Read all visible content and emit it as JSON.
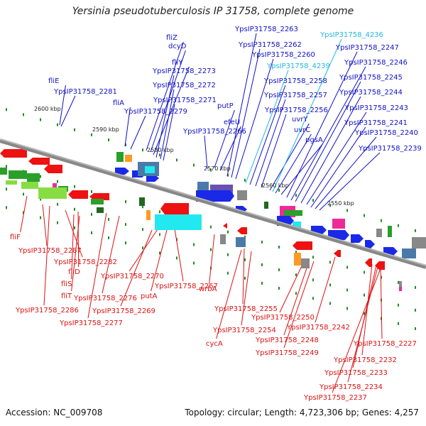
{
  "title": "Yersinia pseudotuberculosis IP 31758, complete genome",
  "footer": {
    "accession": "Accession: NC_009708",
    "summary": "Topology: circular; Length: 4,723,306 bp; Genes: 4,257"
  },
  "colors": {
    "forward_label": "#1010c8",
    "highlight_label": "#22b8e0",
    "reverse_label": "#dd1111",
    "backbone": "#888888",
    "tick_marker": "#228b22"
  },
  "axis": {
    "unit": "kbp",
    "ticks": [
      "2600 kbp",
      "2590 kbp",
      "2580 kbp",
      "2570 kbp",
      "2560 kbp",
      "2550 kbp"
    ]
  },
  "top_labels": [
    {
      "text": "fliZ"
    },
    {
      "text": "dcyD"
    },
    {
      "text": "fliY"
    },
    {
      "text": "YpsIP31758_2273"
    },
    {
      "text": "YpsIP31758_2272"
    },
    {
      "text": "YpsIP31758_2271"
    },
    {
      "text": "fliE"
    },
    {
      "text": "YpsIP31758_2281"
    },
    {
      "text": "fliA"
    },
    {
      "text": "YpsIP31758_2279"
    },
    {
      "text": "putP"
    },
    {
      "text": "efeU"
    },
    {
      "text": "YpsIP31758_2266"
    },
    {
      "text": "YpsIP31758_2263"
    },
    {
      "text": "YpsIP31758_2262"
    },
    {
      "text": "YpsIP31758_2260"
    },
    {
      "text": "YpsIP31758_4239"
    },
    {
      "text": "YpsIP31758_2258"
    },
    {
      "text": "YpsIP31758_2257"
    },
    {
      "text": "YpsIP31758_2256"
    },
    {
      "text": "uvrY"
    },
    {
      "text": "uvrC"
    },
    {
      "text": "pgsA"
    },
    {
      "text": "YpsIP31758_4236"
    },
    {
      "text": "YpsIP31758_2247"
    },
    {
      "text": "YpsIP31758_2246"
    },
    {
      "text": "YpsIP31758_2245"
    },
    {
      "text": "YpsIP31758_2244"
    },
    {
      "text": "YpsIP31758_2243"
    },
    {
      "text": "YpsIP31758_2241"
    },
    {
      "text": "YpsIP31758_2240"
    },
    {
      "text": "YpsIP31758_2239"
    }
  ],
  "bottom_labels": [
    {
      "text": "fliF"
    },
    {
      "text": "YpsIP31758_2287"
    },
    {
      "text": "YpsIP31758_2282"
    },
    {
      "text": "fliD"
    },
    {
      "text": "fliS"
    },
    {
      "text": "fliT"
    },
    {
      "text": "YpsIP31758_2286"
    },
    {
      "text": "YpsIP31758_2277"
    },
    {
      "text": "YpsIP31758_2276"
    },
    {
      "text": "YpsIP31758_2270"
    },
    {
      "text": "putA"
    },
    {
      "text": "YpsIP31758_2267"
    },
    {
      "text": "YpsIP31758_2269"
    },
    {
      "text": "wrbA"
    },
    {
      "text": "YpsIP31758_2255"
    },
    {
      "text": "YpsIP31758_2254"
    },
    {
      "text": "cycA"
    },
    {
      "text": "YpsIP31758_2250"
    },
    {
      "text": "YpsIP31758_2248"
    },
    {
      "text": "YpsIP31758_2249"
    },
    {
      "text": "YpsIP31758_2242"
    },
    {
      "text": "YpsIP31758_2227"
    },
    {
      "text": "YpsIP31758_2232"
    },
    {
      "text": "YpsIP31758_2233"
    },
    {
      "text": "YpsIP31758_2234"
    },
    {
      "text": "YpsIP31758_2237"
    }
  ]
}
